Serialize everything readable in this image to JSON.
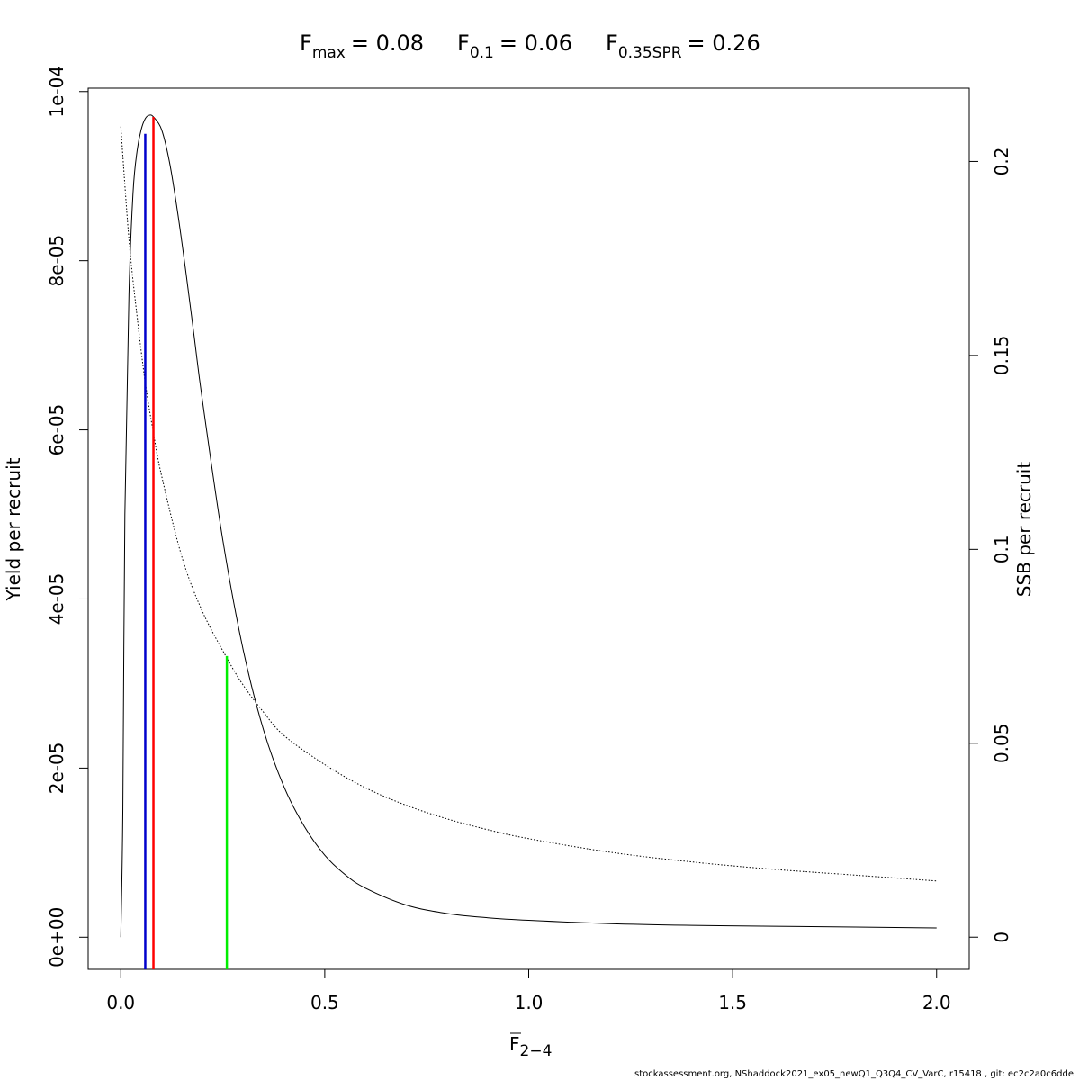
{
  "chart_data": {
    "type": "line",
    "title": {
      "fmax": {
        "symbol": "F",
        "sub": "max",
        "value": "= 0.08"
      },
      "f01": {
        "symbol": "F",
        "sub": "0.1",
        "value": "= 0.06"
      },
      "f35": {
        "symbol": "F",
        "sub": "0.35SPR",
        "value": "= 0.26"
      }
    },
    "xlabel": {
      "symbol": "F",
      "sub": "2−4"
    },
    "ylabel_left": "Yield per recruit",
    "ylabel_right": "SSB per recruit",
    "xlim": [
      -0.08,
      2.08
    ],
    "ylim_left": [
      -3.8e-06,
      0.0001004
    ],
    "ylim_right": [
      -0.0083,
      0.2189
    ],
    "x_ticks": [
      0,
      0.5,
      1,
      1.5,
      2
    ],
    "x_tick_labels": [
      "0.0",
      "0.5",
      "1.0",
      "1.5",
      "2.0"
    ],
    "y_left_ticks": [
      0,
      2e-05,
      4e-05,
      6e-05,
      8e-05,
      0.0001
    ],
    "y_left_tick_labels": [
      "0e+00",
      "2e-05",
      "4e-05",
      "6e-05",
      "8e-05",
      "1e-04"
    ],
    "y_right_ticks": [
      0,
      0.05,
      0.1,
      0.15,
      0.2
    ],
    "y_right_tick_labels": [
      "0",
      "0.05",
      "0.1",
      "0.15",
      "0.2"
    ],
    "grid": false,
    "series": [
      {
        "axis": "left",
        "style": "solid",
        "color": "#000000",
        "x": [
          0,
          0.005,
          0.01,
          0.02,
          0.03,
          0.04,
          0.05,
          0.06,
          0.07,
          0.08,
          0.1,
          0.12,
          0.14,
          0.16,
          0.18,
          0.2,
          0.25,
          0.3,
          0.35,
          0.4,
          0.45,
          0.5,
          0.55,
          0.6,
          0.7,
          0.8,
          0.9,
          1.0,
          1.2,
          1.4,
          1.6,
          1.8,
          2.0
        ],
        "values": [
          0,
          1.5e-05,
          5e-05,
          7.6e-05,
          8.8e-05,
          9.3e-05,
          9.55e-05,
          9.68e-05,
          9.72e-05,
          9.7e-05,
          9.55e-05,
          9.15e-05,
          8.55e-05,
          7.85e-05,
          7.1e-05,
          6.35e-05,
          4.7e-05,
          3.4e-05,
          2.45e-05,
          1.78e-05,
          1.31e-05,
          9.7e-06,
          7.4e-06,
          5.8e-06,
          3.8e-06,
          2.8e-06,
          2.3e-06,
          2e-06,
          1.6e-06,
          1.4e-06,
          1.3e-06,
          1.2e-06,
          1.1e-06
        ]
      },
      {
        "axis": "right",
        "style": "dotted",
        "color": "#000000",
        "x": [
          0,
          0.02,
          0.04,
          0.06,
          0.08,
          0.1,
          0.15,
          0.2,
          0.26,
          0.3,
          0.35,
          0.4,
          0.5,
          0.6,
          0.7,
          0.8,
          0.9,
          1.0,
          1.2,
          1.4,
          1.6,
          1.8,
          2.0
        ],
        "values": [
          0.209,
          0.18,
          0.16,
          0.143,
          0.13,
          0.119,
          0.098,
          0.084,
          0.072,
          0.065,
          0.058,
          0.052,
          0.0445,
          0.0385,
          0.034,
          0.0305,
          0.0277,
          0.0254,
          0.0219,
          0.0194,
          0.0175,
          0.016,
          0.0145
        ]
      }
    ],
    "reference_lines": [
      {
        "name": "F0.1",
        "x": 0.06,
        "axis": "left",
        "y_top": 9.5e-05,
        "color": "#0000cc"
      },
      {
        "name": "Fmax",
        "x": 0.08,
        "axis": "left",
        "y_top": 9.7e-05,
        "color": "#ff0000"
      },
      {
        "name": "F0.35SPR",
        "x": 0.26,
        "axis": "right",
        "y_top": 0.0725,
        "color": "#00ee00"
      }
    ]
  },
  "footer": "stockassessment.org, NShaddock2021_ex05_newQ1_Q3Q4_CV_VarC, r15418 , git: ec2c2a0c6dde"
}
